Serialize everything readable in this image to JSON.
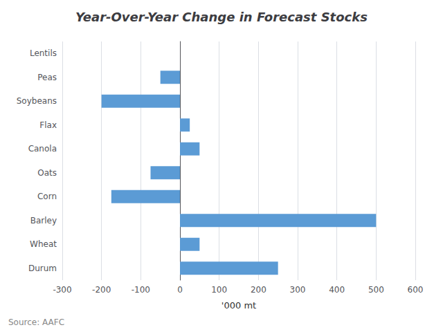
{
  "chart_data": {
    "type": "bar",
    "title": "Year-Over-Year Change in Forecast Stocks",
    "categories": [
      "Durum",
      "Wheat",
      "Barley",
      "Corn",
      "Oats",
      "Canola",
      "Flax",
      "Soybeans",
      "Peas",
      "Lentils"
    ],
    "values": [
      250,
      50,
      500,
      -175,
      -75,
      50,
      25,
      -200,
      -50,
      0
    ],
    "color": "#5B9BD5",
    "orientation": "horizontal",
    "xlim": [
      -300,
      600
    ],
    "xticks": [
      -300,
      -200,
      -100,
      0,
      100,
      200,
      300,
      400,
      500,
      600
    ],
    "xlabel": "'000 mt",
    "annotation": "Source: AAFC",
    "grid": true
  }
}
